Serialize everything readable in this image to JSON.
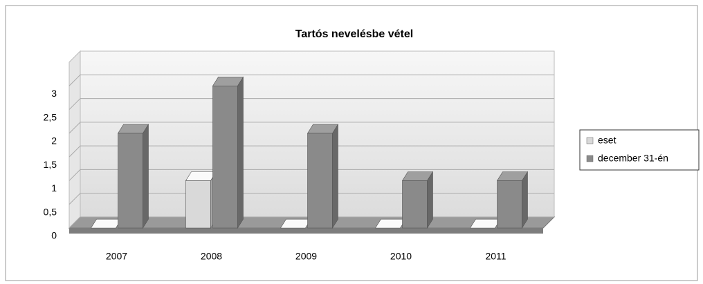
{
  "chart_data": {
    "type": "bar3d",
    "title": "Tartós nevelésbe vétel",
    "categories": [
      "2007",
      "2008",
      "2009",
      "2010",
      "2011"
    ],
    "series": [
      {
        "name": "eset",
        "color": "#d9d9d9",
        "values": [
          0,
          1,
          0,
          0,
          0
        ]
      },
      {
        "name": "december 31-én",
        "color": "#8a8a8a",
        "values": [
          2,
          3,
          2,
          1,
          1
        ]
      }
    ],
    "ylim": [
      0,
      3.5
    ],
    "yticks": [
      0,
      {
        "value": 0.5,
        "label": "0,5"
      },
      1,
      {
        "value": 1.5,
        "label": "1,5"
      },
      2,
      {
        "value": 2.5,
        "label": "2,5"
      },
      3
    ],
    "grid": true,
    "legend": "right"
  }
}
